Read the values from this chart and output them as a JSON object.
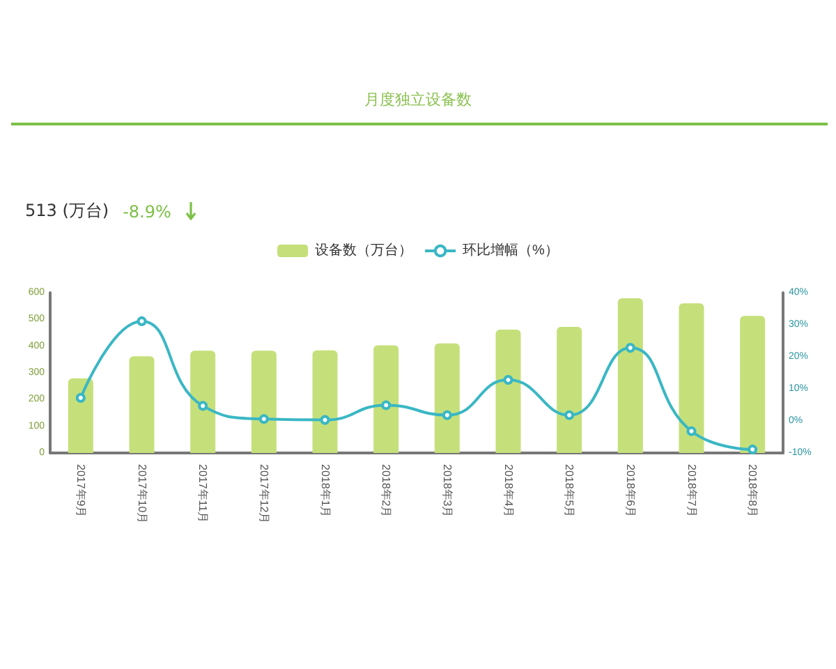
{
  "chart_data": {
    "type": "bar",
    "title": "月度独立设备数",
    "annotations": [
      "513 (万台)",
      "-8.9%"
    ],
    "categories": [
      "2017年9月",
      "2017年10月",
      "2017年11月",
      "2017年12月",
      "2018年1月",
      "2018年2月",
      "2018年3月",
      "2018年4月",
      "2018年5月",
      "2018年6月",
      "2018年7月",
      "2018年8月"
    ],
    "series": [
      {
        "name": "设备数（万台）",
        "color": "#c5e07a",
        "values": [
          279,
          362,
          383,
          383,
          384,
          403,
          410,
          462,
          472,
          579,
          560,
          513
        ]
      },
      {
        "name": "环比增幅（%）",
        "type": "line",
        "axis": "y2",
        "color": "#3ab7c4",
        "marker": "circle",
        "values": [
          7.2,
          31.1,
          4.7,
          0.6,
          0.3,
          4.9,
          1.8,
          12.8,
          1.8,
          22.8,
          -3.2,
          -8.9
        ]
      }
    ],
    "ylim": [
      0,
      600
    ],
    "yticks": [
      0,
      100,
      200,
      300,
      400,
      500,
      600
    ],
    "y2lim": [
      -10,
      40
    ],
    "y2ticks": [
      {
        "value": -10,
        "label": "-10%"
      },
      {
        "value": 0,
        "label": "0%"
      },
      {
        "value": 10,
        "label": "10%"
      },
      {
        "value": 20,
        "label": "20%"
      },
      {
        "value": 30,
        "label": "30%"
      },
      {
        "value": 40,
        "label": "40%"
      }
    ],
    "grid": false,
    "legend": "top"
  }
}
